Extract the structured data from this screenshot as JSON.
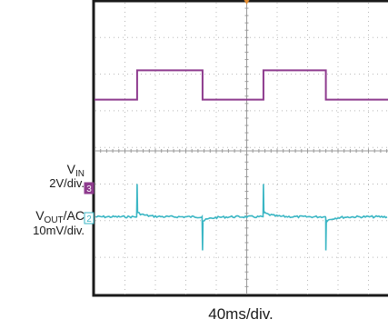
{
  "chart_data": {
    "type": "line",
    "title": "",
    "xlabel": "40ms/div.",
    "grid": true,
    "x_divisions": 10,
    "y_divisions": 8,
    "series": [
      {
        "name": "VIN",
        "channel": "3",
        "scale": "2V/div.",
        "color": "#8e3b8e",
        "waveform": "square",
        "period_div": 4.2,
        "high_level_div": 2.2,
        "low_level_div": 1.4,
        "rise_times_div": [
          1.4,
          5.55
        ],
        "fall_times_div": [
          3.55,
          7.6
        ]
      },
      {
        "name": "VOUT/AC",
        "channel": "2",
        "scale": "10mV/div.",
        "color": "#3ab6c4",
        "waveform": "ripple",
        "baseline_div": -1.8,
        "spike_up_times_div": [
          1.4,
          5.55
        ],
        "spike_down_times_div": [
          3.55,
          7.6
        ]
      }
    ]
  },
  "labels": {
    "vin_name": "V",
    "vin_sub": "IN",
    "vin_scale": "2V/div.",
    "vin_channel": "3",
    "vout_name_pre": "V",
    "vout_sub": "OUT",
    "vout_name_post": "/AC",
    "vout_scale": "10mV/div.",
    "vout_channel": "2",
    "time_scale": "40ms/div."
  },
  "colors": {
    "vin": "#8e3b8e",
    "vout": "#3ab6c4",
    "grid": "#b8b8b8",
    "frame": "#1a1a1a"
  }
}
